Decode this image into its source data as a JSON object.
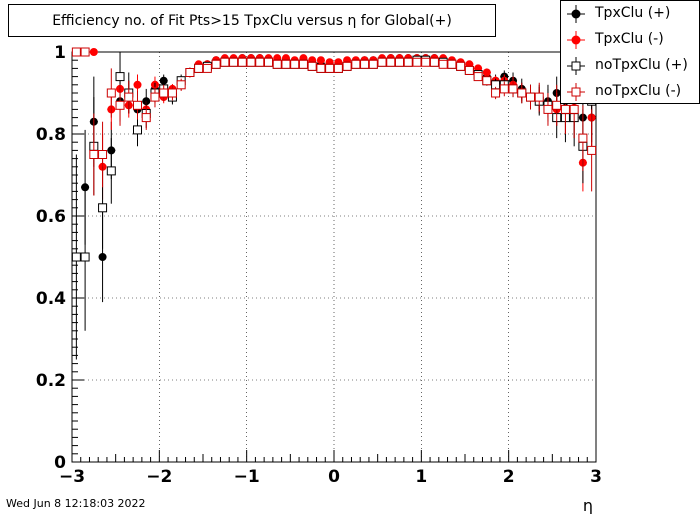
{
  "title": "Efficiency no. of Fit Pts>15 TpxClu versus η for Global(+)",
  "datestamp": "Wed Jun  8 12:18:03 2022",
  "colors": {
    "black": "#000000",
    "red": "#ff0000",
    "darkred": "#cc0000",
    "axis": "#000000",
    "grid": "#000000"
  },
  "chart_data": {
    "type": "scatter",
    "title": "Efficiency no. of Fit Pts>15 TpxClu versus η for Global(+)",
    "xlabel": "η",
    "ylabel": "",
    "xlim": [
      -3,
      3
    ],
    "ylim": [
      0,
      1
    ],
    "grid": true,
    "legend_position": "top-right",
    "xticks": [
      -3,
      -2,
      -1,
      0,
      1,
      2,
      3
    ],
    "xtick_labels": [
      "−3",
      "−2",
      "−1",
      "0",
      "1",
      "2",
      "3"
    ],
    "yticks": [
      0,
      0.2,
      0.4,
      0.6,
      0.8,
      1
    ],
    "ytick_labels": [
      "0",
      "0.2",
      "0.4",
      "0.6",
      "0.8",
      "1"
    ],
    "x": [
      -2.95,
      -2.85,
      -2.75,
      -2.65,
      -2.55,
      -2.45,
      -2.35,
      -2.25,
      -2.15,
      -2.05,
      -1.95,
      -1.85,
      -1.75,
      -1.65,
      -1.55,
      -1.45,
      -1.35,
      -1.25,
      -1.15,
      -1.05,
      -0.95,
      -0.85,
      -0.75,
      -0.65,
      -0.55,
      -0.45,
      -0.35,
      -0.25,
      -0.15,
      -0.05,
      0.05,
      0.15,
      0.25,
      0.35,
      0.45,
      0.55,
      0.65,
      0.75,
      0.85,
      0.95,
      1.05,
      1.15,
      1.25,
      1.35,
      1.45,
      1.55,
      1.65,
      1.75,
      1.85,
      1.95,
      2.05,
      2.15,
      2.25,
      2.35,
      2.45,
      2.55,
      2.65,
      2.75,
      2.85,
      2.95
    ],
    "series": [
      {
        "name": "TpxClu (+)",
        "marker": "filled-circle",
        "color": "#000000",
        "values": [
          1.0,
          0.67,
          0.83,
          0.5,
          0.76,
          0.88,
          0.89,
          0.86,
          0.88,
          0.91,
          0.93,
          0.89,
          0.92,
          0.95,
          0.96,
          0.97,
          0.98,
          0.98,
          0.98,
          0.985,
          0.985,
          0.985,
          0.98,
          0.98,
          0.98,
          0.975,
          0.98,
          0.975,
          0.97,
          0.97,
          0.97,
          0.97,
          0.975,
          0.98,
          0.98,
          0.98,
          0.985,
          0.985,
          0.985,
          0.985,
          0.985,
          0.985,
          0.98,
          0.975,
          0.97,
          0.96,
          0.95,
          0.94,
          0.93,
          0.94,
          0.93,
          0.91,
          0.89,
          0.89,
          0.88,
          0.9,
          0.88,
          0.85,
          0.84,
          0.84
        ],
        "errors": [
          0.0,
          0.14,
          0.11,
          0.11,
          0.07,
          0.05,
          0.04,
          0.03,
          0.03,
          0.02,
          0.015,
          0.015,
          0.012,
          0.01,
          0.008,
          0.006,
          0.005,
          0.005,
          0.004,
          0.004,
          0.004,
          0.004,
          0.004,
          0.004,
          0.004,
          0.004,
          0.004,
          0.004,
          0.004,
          0.004,
          0.004,
          0.004,
          0.004,
          0.004,
          0.004,
          0.004,
          0.004,
          0.004,
          0.004,
          0.004,
          0.004,
          0.004,
          0.005,
          0.005,
          0.006,
          0.008,
          0.01,
          0.012,
          0.015,
          0.015,
          0.02,
          0.025,
          0.03,
          0.03,
          0.04,
          0.04,
          0.05,
          0.06,
          0.07,
          0.07
        ]
      },
      {
        "name": "TpxClu (-)",
        "marker": "filled-circle",
        "color": "#ff0000",
        "values": [
          1.0,
          1.0,
          1.0,
          0.72,
          0.86,
          0.91,
          0.87,
          0.92,
          0.86,
          0.92,
          0.89,
          0.91,
          0.93,
          0.95,
          0.97,
          0.97,
          0.98,
          0.985,
          0.985,
          0.985,
          0.985,
          0.985,
          0.985,
          0.985,
          0.985,
          0.98,
          0.985,
          0.98,
          0.98,
          0.975,
          0.975,
          0.98,
          0.98,
          0.98,
          0.98,
          0.985,
          0.985,
          0.985,
          0.985,
          0.985,
          0.985,
          0.985,
          0.985,
          0.98,
          0.975,
          0.97,
          0.96,
          0.95,
          0.93,
          0.93,
          0.92,
          0.9,
          0.89,
          0.88,
          0.87,
          0.86,
          0.85,
          0.88,
          0.73,
          0.84
        ],
        "errors": [
          0.0,
          0.0,
          0.0,
          0.08,
          0.05,
          0.04,
          0.03,
          0.025,
          0.02,
          0.02,
          0.015,
          0.012,
          0.01,
          0.008,
          0.006,
          0.005,
          0.004,
          0.004,
          0.004,
          0.004,
          0.004,
          0.004,
          0.004,
          0.004,
          0.004,
          0.004,
          0.004,
          0.004,
          0.004,
          0.004,
          0.004,
          0.004,
          0.004,
          0.004,
          0.004,
          0.004,
          0.004,
          0.004,
          0.004,
          0.004,
          0.004,
          0.004,
          0.004,
          0.004,
          0.005,
          0.006,
          0.008,
          0.01,
          0.012,
          0.015,
          0.02,
          0.02,
          0.025,
          0.03,
          0.03,
          0.04,
          0.05,
          0.06,
          0.07,
          0.08
        ]
      },
      {
        "name": "noTpxClu (+)",
        "marker": "open-square",
        "color": "#000000",
        "values": [
          0.5,
          0.5,
          0.77,
          0.62,
          0.71,
          0.94,
          0.9,
          0.81,
          0.85,
          0.9,
          0.91,
          0.89,
          0.93,
          0.95,
          0.96,
          0.965,
          0.97,
          0.975,
          0.975,
          0.975,
          0.975,
          0.975,
          0.975,
          0.97,
          0.97,
          0.97,
          0.97,
          0.965,
          0.96,
          0.96,
          0.96,
          0.965,
          0.97,
          0.97,
          0.97,
          0.975,
          0.975,
          0.975,
          0.975,
          0.98,
          0.98,
          0.975,
          0.975,
          0.97,
          0.965,
          0.955,
          0.945,
          0.93,
          0.92,
          0.92,
          0.91,
          0.9,
          0.89,
          0.88,
          0.87,
          0.84,
          0.84,
          0.84,
          0.77,
          0.88
        ],
        "errors": [
          0.25,
          0.18,
          0.12,
          0.1,
          0.08,
          0.06,
          0.05,
          0.04,
          0.035,
          0.025,
          0.02,
          0.018,
          0.015,
          0.012,
          0.01,
          0.008,
          0.006,
          0.006,
          0.005,
          0.005,
          0.005,
          0.005,
          0.005,
          0.005,
          0.005,
          0.005,
          0.005,
          0.005,
          0.005,
          0.005,
          0.005,
          0.005,
          0.005,
          0.005,
          0.005,
          0.005,
          0.005,
          0.005,
          0.005,
          0.005,
          0.005,
          0.005,
          0.005,
          0.006,
          0.006,
          0.008,
          0.01,
          0.012,
          0.015,
          0.018,
          0.02,
          0.025,
          0.03,
          0.035,
          0.04,
          0.05,
          0.06,
          0.07,
          0.09,
          0.1
        ]
      },
      {
        "name": "noTpxClu (-)",
        "marker": "open-square",
        "color": "#cc0000",
        "values": [
          1.0,
          1.0,
          0.75,
          0.75,
          0.9,
          0.87,
          0.89,
          0.87,
          0.84,
          0.89,
          0.9,
          0.9,
          0.92,
          0.95,
          0.96,
          0.96,
          0.97,
          0.975,
          0.975,
          0.975,
          0.975,
          0.975,
          0.975,
          0.97,
          0.97,
          0.97,
          0.97,
          0.965,
          0.96,
          0.96,
          0.96,
          0.965,
          0.97,
          0.97,
          0.97,
          0.975,
          0.975,
          0.975,
          0.975,
          0.975,
          0.975,
          0.975,
          0.97,
          0.97,
          0.965,
          0.955,
          0.94,
          0.93,
          0.9,
          0.91,
          0.91,
          0.9,
          0.89,
          0.89,
          0.86,
          0.87,
          0.86,
          0.86,
          0.79,
          0.76
        ],
        "errors": [
          0.0,
          0.0,
          0.1,
          0.08,
          0.06,
          0.05,
          0.04,
          0.035,
          0.03,
          0.025,
          0.02,
          0.018,
          0.015,
          0.012,
          0.01,
          0.008,
          0.006,
          0.006,
          0.005,
          0.005,
          0.005,
          0.005,
          0.005,
          0.005,
          0.005,
          0.005,
          0.005,
          0.005,
          0.005,
          0.005,
          0.005,
          0.005,
          0.005,
          0.005,
          0.005,
          0.005,
          0.005,
          0.005,
          0.005,
          0.005,
          0.005,
          0.005,
          0.005,
          0.006,
          0.006,
          0.008,
          0.01,
          0.012,
          0.015,
          0.018,
          0.02,
          0.025,
          0.03,
          0.035,
          0.04,
          0.05,
          0.06,
          0.07,
          0.08,
          0.1
        ]
      }
    ]
  }
}
